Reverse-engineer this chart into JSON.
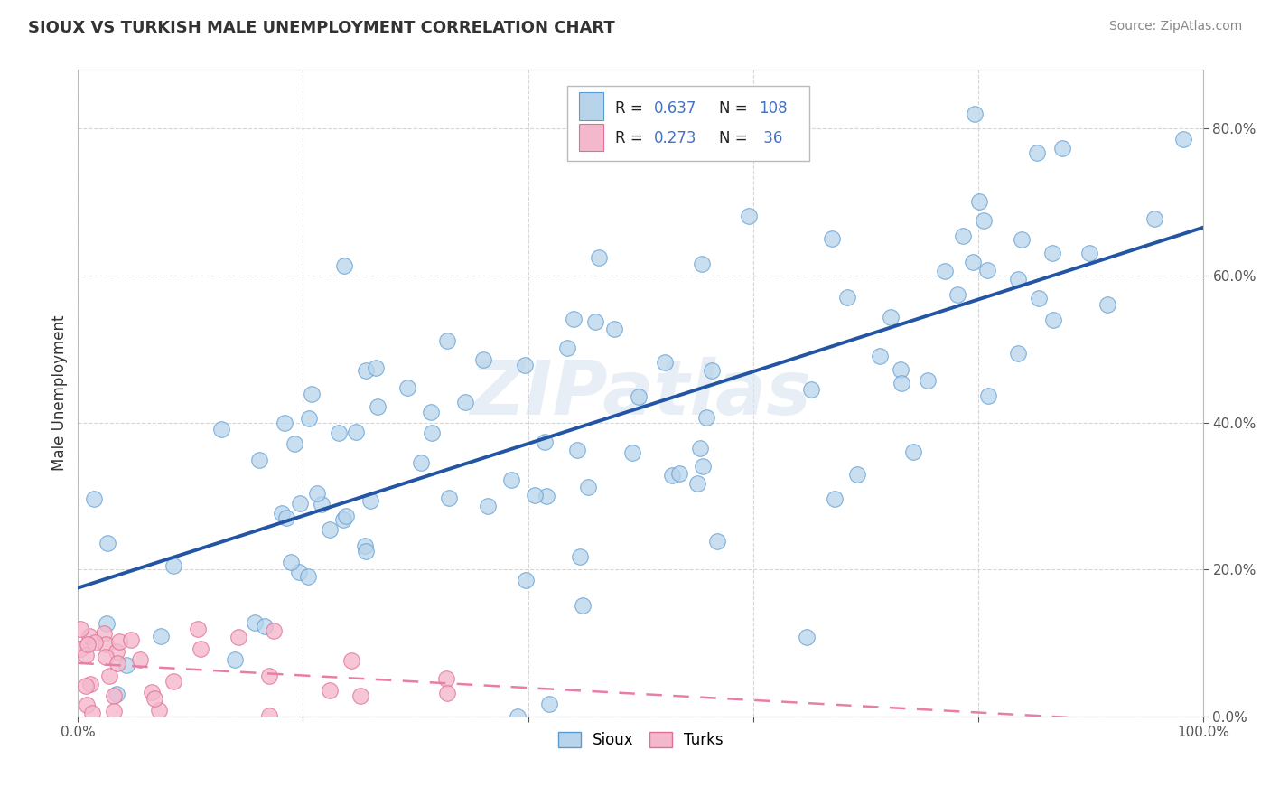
{
  "title": "SIOUX VS TURKISH MALE UNEMPLOYMENT CORRELATION CHART",
  "source": "Source: ZipAtlas.com",
  "ylabel": "Male Unemployment",
  "sioux_color": "#b8d4ea",
  "sioux_edge_color": "#5b9bd5",
  "turks_color": "#f4b8cc",
  "turks_edge_color": "#e07090",
  "sioux_line_color": "#2255a4",
  "turks_line_color": "#e87da8",
  "background_color": "#ffffff",
  "grid_color": "#cccccc",
  "r1": "0.637",
  "n1": "108",
  "r2": "0.273",
  "n2": " 36",
  "accent_color": "#4472c4",
  "watermark_color": "#d8e4f0"
}
